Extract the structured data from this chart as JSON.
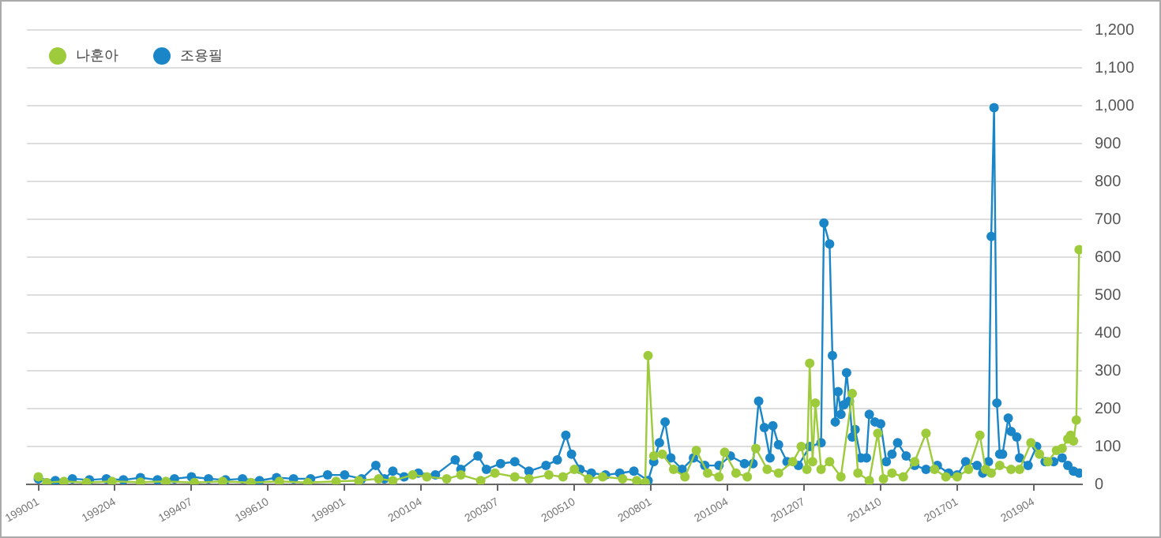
{
  "chart_data": {
    "type": "line",
    "legend": "top left",
    "grid": "y",
    "marker": "circle",
    "xlim": [
      "1989-09",
      "2020-09"
    ],
    "xticks": [
      {
        "value": "1990-01",
        "label": "199001"
      },
      {
        "value": "1992-04",
        "label": "199204"
      },
      {
        "value": "1994-07",
        "label": "199407"
      },
      {
        "value": "1996-10",
        "label": "199610"
      },
      {
        "value": "1999-01",
        "label": "199901"
      },
      {
        "value": "2001-04",
        "label": "200104"
      },
      {
        "value": "2003-07",
        "label": "200307"
      },
      {
        "value": "2005-10",
        "label": "200510"
      },
      {
        "value": "2008-01",
        "label": "200801"
      },
      {
        "value": "2010-04",
        "label": "201004"
      },
      {
        "value": "2012-07",
        "label": "201207"
      },
      {
        "value": "2014-10",
        "label": "201410"
      },
      {
        "value": "2017-01",
        "label": "201701"
      },
      {
        "value": "2019-04",
        "label": "201904"
      }
    ],
    "ylim": [
      0,
      1200
    ],
    "yticks": [
      0,
      100,
      200,
      300,
      400,
      500,
      600,
      700,
      800,
      900,
      {
        "value": 1000,
        "label": "1,000"
      },
      {
        "value": 1100,
        "label": "1,100"
      },
      {
        "value": 1200,
        "label": "1,200"
      }
    ],
    "series": [
      {
        "name": "나훈아",
        "color": "#9dcb3b",
        "x": [
          "1990-01",
          "1990-04",
          "1990-10",
          "1991-06",
          "1992-03",
          "1993-01",
          "1993-10",
          "1994-08",
          "1995-06",
          "1996-04",
          "1997-02",
          "1997-12",
          "1998-10",
          "1999-06",
          "2000-01",
          "2000-06",
          "2001-01",
          "2001-06",
          "2002-01",
          "2002-06",
          "2003-01",
          "2003-06",
          "2004-01",
          "2004-06",
          "2005-01",
          "2005-06",
          "2005-10",
          "2006-03",
          "2006-08",
          "2007-03",
          "2007-08",
          "2007-11",
          "2007-12",
          "2008-02",
          "2008-05",
          "2008-09",
          "2009-01",
          "2009-05",
          "2009-09",
          "2010-01",
          "2010-03",
          "2010-07",
          "2010-11",
          "2011-02",
          "2011-06",
          "2011-10",
          "2012-03",
          "2012-06",
          "2012-08",
          "2012-09",
          "2012-10",
          "2012-11",
          "2013-01",
          "2013-04",
          "2013-08",
          "2013-12",
          "2014-02",
          "2014-06",
          "2014-09",
          "2014-11",
          "2015-02",
          "2015-06",
          "2015-10",
          "2016-02",
          "2016-05",
          "2016-09",
          "2017-01",
          "2017-05",
          "2017-09",
          "2017-11",
          "2018-01",
          "2018-04",
          "2018-08",
          "2018-11",
          "2019-03",
          "2019-06",
          "2019-09",
          "2019-12",
          "2020-02",
          "2020-04",
          "2020-05",
          "2020-06",
          "2020-07",
          "2020-08"
        ],
        "values": [
          20,
          5,
          8,
          5,
          8,
          6,
          8,
          5,
          8,
          5,
          8,
          5,
          8,
          10,
          15,
          10,
          25,
          20,
          15,
          25,
          10,
          30,
          20,
          15,
          25,
          20,
          40,
          15,
          20,
          15,
          10,
          5,
          340,
          75,
          80,
          40,
          20,
          90,
          30,
          20,
          85,
          30,
          20,
          95,
          40,
          30,
          60,
          100,
          40,
          320,
          60,
          215,
          40,
          60,
          20,
          240,
          30,
          10,
          135,
          15,
          30,
          20,
          60,
          135,
          40,
          20,
          20,
          40,
          130,
          40,
          30,
          50,
          40,
          40,
          110,
          80,
          60,
          90,
          95,
          120,
          130,
          115,
          170,
          620
        ]
      },
      {
        "name": "조용필",
        "color": "#1a86c8",
        "x": [
          "1990-01",
          "1990-07",
          "1991-01",
          "1991-07",
          "1992-01",
          "1992-07",
          "1993-01",
          "1993-07",
          "1994-01",
          "1994-07",
          "1995-01",
          "1995-07",
          "1996-01",
          "1996-07",
          "1997-01",
          "1997-07",
          "1998-01",
          "1998-07",
          "1999-01",
          "1999-07",
          "1999-12",
          "2000-03",
          "2000-06",
          "2000-10",
          "2001-03",
          "2001-09",
          "2002-04",
          "2002-06",
          "2002-12",
          "2003-03",
          "2003-08",
          "2004-01",
          "2004-06",
          "2004-12",
          "2005-04",
          "2005-07",
          "2005-09",
          "2005-12",
          "2006-04",
          "2006-09",
          "2007-02",
          "2007-07",
          "2007-12",
          "2008-02",
          "2008-04",
          "2008-06",
          "2008-08",
          "2008-12",
          "2009-04",
          "2009-08",
          "2010-01",
          "2010-05",
          "2010-10",
          "2011-01",
          "2011-03",
          "2011-05",
          "2011-07",
          "2011-08",
          "2011-10",
          "2012-01",
          "2012-05",
          "2012-09",
          "2013-01",
          "2013-02",
          "2013-04",
          "2013-05",
          "2013-06",
          "2013-07",
          "2013-08",
          "2013-09",
          "2013-10",
          "2013-11",
          "2013-12",
          "2014-01",
          "2014-03",
          "2014-05",
          "2014-06",
          "2014-08",
          "2014-10",
          "2014-12",
          "2015-02",
          "2015-04",
          "2015-07",
          "2015-10",
          "2016-02",
          "2016-06",
          "2016-10",
          "2017-01",
          "2017-04",
          "2017-08",
          "2017-10",
          "2017-12",
          "2018-01",
          "2018-02",
          "2018-03",
          "2018-04",
          "2018-05",
          "2018-07",
          "2018-08",
          "2018-10",
          "2018-11",
          "2019-02",
          "2019-05",
          "2019-08",
          "2019-11",
          "2020-02",
          "2020-04",
          "2020-06",
          "2020-08"
        ],
        "values": [
          15,
          10,
          15,
          12,
          15,
          12,
          18,
          12,
          15,
          20,
          15,
          12,
          15,
          10,
          18,
          15,
          15,
          25,
          25,
          15,
          50,
          15,
          35,
          20,
          30,
          25,
          65,
          40,
          75,
          40,
          55,
          60,
          35,
          50,
          65,
          130,
          80,
          40,
          30,
          25,
          30,
          35,
          10,
          60,
          110,
          165,
          70,
          40,
          70,
          50,
          50,
          75,
          55,
          55,
          220,
          150,
          70,
          155,
          105,
          60,
          50,
          100,
          110,
          690,
          635,
          340,
          165,
          245,
          185,
          210,
          295,
          220,
          125,
          145,
          70,
          70,
          185,
          165,
          160,
          60,
          80,
          110,
          75,
          50,
          40,
          50,
          30,
          25,
          60,
          50,
          30,
          60,
          655,
          995,
          215,
          80,
          80,
          175,
          140,
          125,
          70,
          50,
          100,
          60,
          60,
          70,
          50,
          35,
          30
        ]
      }
    ]
  }
}
